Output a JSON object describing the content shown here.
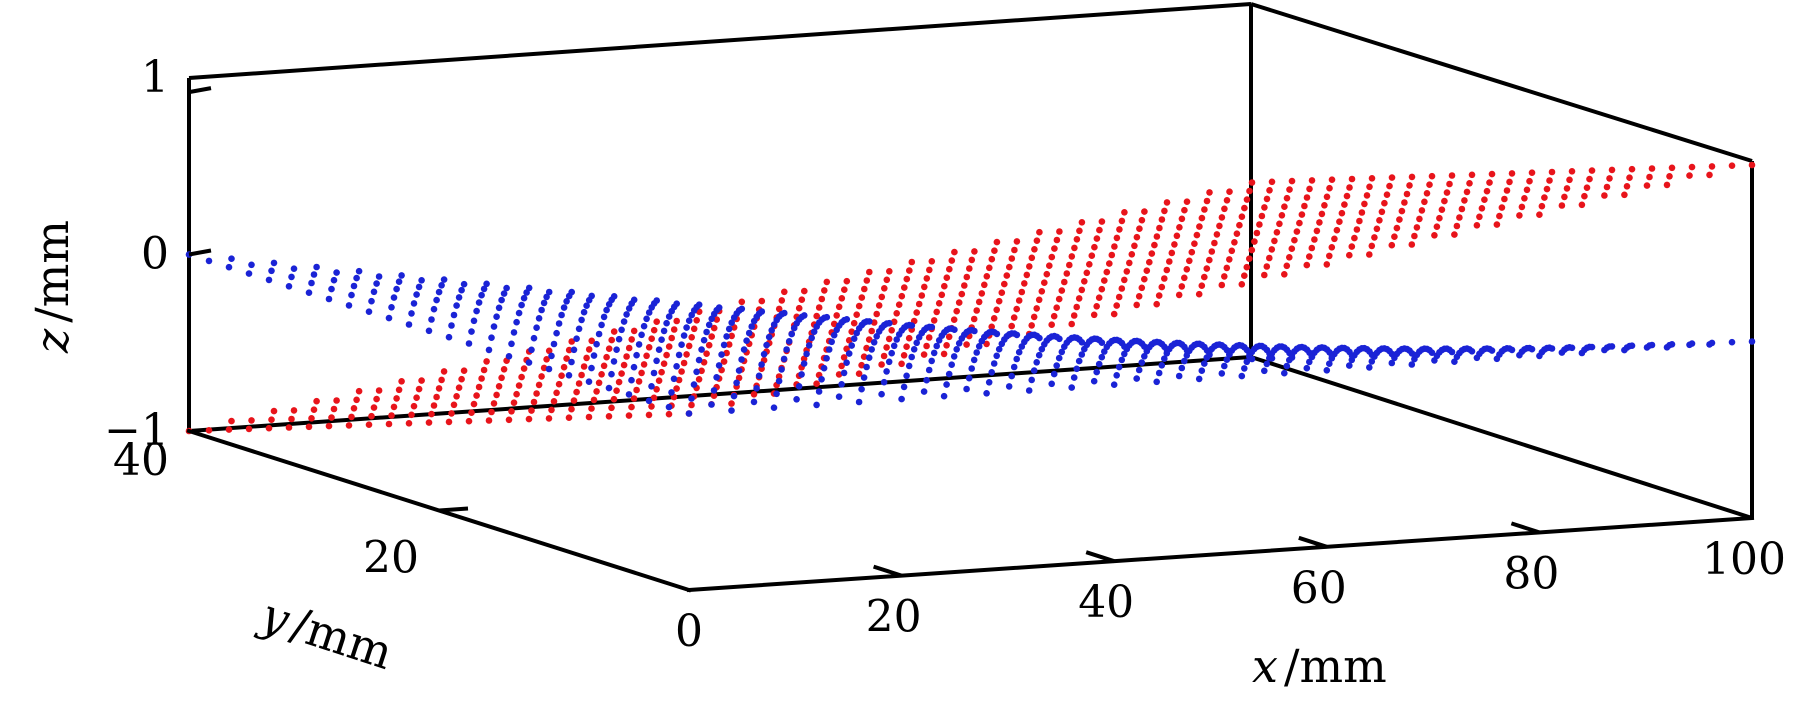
{
  "chart_data": {
    "type": "scatter",
    "title": "",
    "xlabel": {
      "var": "x",
      "unit": "/mm"
    },
    "ylabel": {
      "var": "y",
      "unit": "/mm"
    },
    "zlabel": {
      "var": "z",
      "unit": "/mm"
    },
    "xlim": [
      0,
      100
    ],
    "ylim": [
      0,
      40
    ],
    "zlim": [
      -1,
      1
    ],
    "x_ticks": [
      "0",
      "20",
      "40",
      "60",
      "80",
      "100"
    ],
    "y_ticks": [
      "20",
      "40"
    ],
    "z_ticks": [
      "−1",
      "0",
      "1"
    ],
    "grid": false,
    "legend": "none",
    "series": [
      {
        "color": "#e8141b",
        "surface": "z = (x/100) − (y/40)",
        "x_range": [
          0,
          100
        ],
        "x_count": 26,
        "y_range": [
          0,
          40
        ],
        "y_count": 26
      },
      {
        "color": "#1a23d6",
        "surface": "z = −(x/100) · (y/40)",
        "x_range": [
          0,
          100
        ],
        "x_count": 26,
        "y_range": [
          0,
          40
        ],
        "y_count": 26
      }
    ]
  }
}
